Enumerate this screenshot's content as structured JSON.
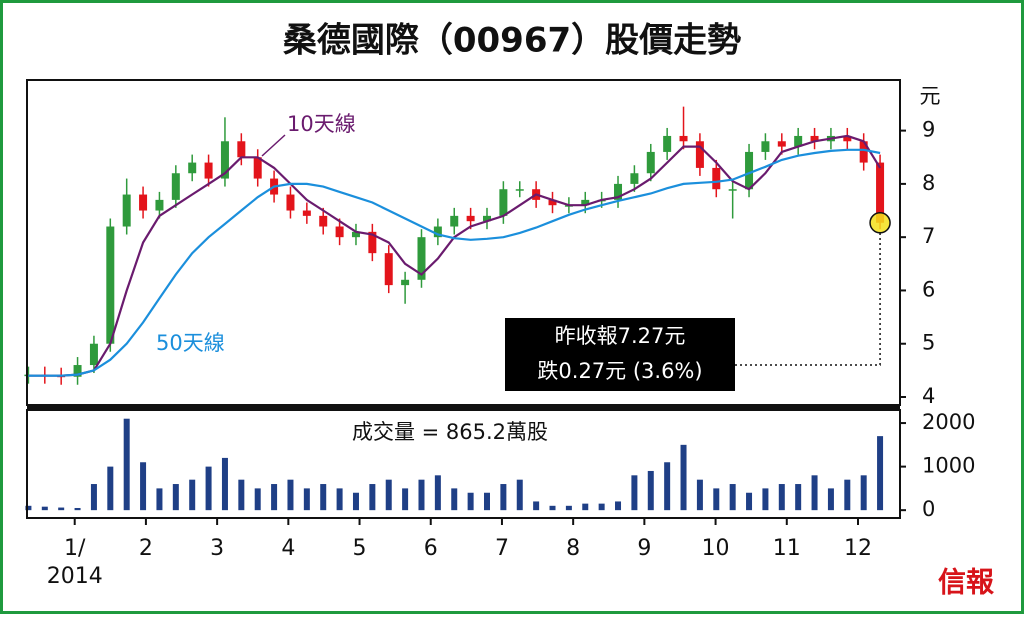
{
  "title": "桑德國際（00967）股價走勢",
  "source": "信報",
  "chart_data": [
    {
      "type": "candlestick",
      "y_unit": "元",
      "x": [
        0.35,
        0.58,
        0.81,
        1.04,
        1.27,
        1.5,
        1.73,
        1.96,
        2.19,
        2.42,
        2.65,
        2.88,
        3.11,
        3.34,
        3.57,
        3.8,
        4.03,
        4.26,
        4.49,
        4.72,
        4.95,
        5.18,
        5.41,
        5.64,
        5.87,
        6.1,
        6.33,
        6.56,
        6.79,
        7.02,
        7.25,
        7.48,
        7.71,
        7.94,
        8.17,
        8.4,
        8.63,
        8.86,
        9.09,
        9.32,
        9.55,
        9.78,
        10.01,
        10.24,
        10.47,
        10.7,
        10.93,
        11.16,
        11.39,
        11.62,
        11.85,
        12.08,
        12.31
      ],
      "open": [
        4.4,
        4.42,
        4.4,
        4.38,
        4.6,
        5.0,
        7.2,
        7.8,
        7.5,
        7.7,
        8.2,
        8.4,
        8.1,
        8.8,
        8.5,
        8.1,
        7.8,
        7.5,
        7.4,
        7.2,
        7.0,
        7.1,
        6.7,
        6.1,
        6.2,
        7.0,
        7.2,
        7.4,
        7.3,
        7.4,
        7.9,
        7.9,
        7.7,
        7.6,
        7.6,
        7.7,
        7.7,
        8.0,
        8.2,
        8.6,
        8.9,
        8.8,
        8.3,
        7.9,
        7.9,
        8.6,
        8.8,
        8.7,
        8.9,
        8.8,
        8.9,
        8.8,
        8.4
      ],
      "high": [
        4.57,
        4.57,
        4.55,
        4.75,
        5.15,
        7.35,
        8.1,
        7.95,
        7.85,
        8.35,
        8.55,
        8.55,
        9.25,
        8.95,
        8.65,
        8.25,
        7.95,
        7.65,
        7.55,
        7.35,
        7.25,
        7.25,
        6.85,
        6.35,
        7.15,
        7.35,
        7.55,
        7.55,
        7.55,
        8.05,
        8.05,
        8.05,
        7.85,
        7.75,
        7.85,
        7.85,
        8.15,
        8.35,
        8.75,
        9.05,
        9.45,
        8.95,
        8.45,
        8.05,
        8.75,
        8.95,
        8.95,
        9.05,
        9.05,
        9.05,
        9.05,
        8.95,
        8.55
      ],
      "low": [
        4.25,
        4.25,
        4.23,
        4.23,
        4.45,
        4.85,
        7.05,
        7.35,
        7.35,
        7.55,
        8.05,
        7.95,
        7.95,
        8.35,
        7.95,
        7.65,
        7.35,
        7.25,
        7.05,
        6.85,
        6.85,
        6.55,
        5.95,
        5.75,
        6.05,
        6.85,
        7.05,
        7.15,
        7.15,
        7.25,
        7.75,
        7.55,
        7.45,
        7.45,
        7.45,
        7.55,
        7.55,
        7.85,
        8.05,
        8.45,
        8.65,
        8.15,
        7.75,
        7.35,
        7.75,
        8.45,
        8.55,
        8.55,
        8.65,
        8.65,
        8.65,
        8.25,
        7.15
      ],
      "close": [
        4.42,
        4.4,
        4.38,
        4.6,
        5.0,
        7.2,
        7.8,
        7.5,
        7.7,
        8.2,
        8.4,
        8.1,
        8.8,
        8.5,
        8.1,
        7.8,
        7.5,
        7.4,
        7.2,
        7.0,
        7.1,
        6.7,
        6.1,
        6.2,
        7.0,
        7.2,
        7.4,
        7.3,
        7.4,
        7.9,
        7.9,
        7.7,
        7.6,
        7.6,
        7.7,
        7.7,
        8.0,
        8.2,
        8.6,
        8.9,
        8.8,
        8.3,
        7.9,
        7.9,
        8.6,
        8.8,
        8.7,
        8.9,
        8.8,
        8.9,
        8.8,
        8.4,
        7.27
      ],
      "up_color": "#2f9a3c",
      "down_color": "#e3141b",
      "series": [
        {
          "name": "10天線",
          "color": "#6a1b6e",
          "values": [
            4.4,
            4.4,
            4.4,
            4.42,
            4.5,
            5.0,
            6.0,
            6.9,
            7.4,
            7.6,
            7.8,
            8.0,
            8.2,
            8.5,
            8.5,
            8.3,
            8.0,
            7.7,
            7.5,
            7.3,
            7.1,
            7.05,
            6.9,
            6.5,
            6.3,
            6.6,
            7.0,
            7.2,
            7.3,
            7.4,
            7.6,
            7.8,
            7.7,
            7.6,
            7.6,
            7.7,
            7.75,
            7.9,
            8.1,
            8.4,
            8.7,
            8.7,
            8.4,
            8.05,
            7.9,
            8.2,
            8.6,
            8.7,
            8.8,
            8.85,
            8.9,
            8.8,
            8.3
          ]
        },
        {
          "name": "50天線",
          "color": "#1b8fdc",
          "values": [
            4.4,
            4.4,
            4.4,
            4.42,
            4.5,
            4.7,
            5.0,
            5.4,
            5.85,
            6.3,
            6.7,
            7.0,
            7.25,
            7.5,
            7.75,
            7.95,
            8.0,
            8.0,
            7.95,
            7.85,
            7.75,
            7.65,
            7.5,
            7.35,
            7.2,
            7.05,
            6.98,
            6.95,
            6.97,
            7.0,
            7.08,
            7.18,
            7.3,
            7.42,
            7.52,
            7.6,
            7.68,
            7.75,
            7.82,
            7.92,
            8.0,
            8.02,
            8.04,
            8.08,
            8.2,
            8.32,
            8.45,
            8.53,
            8.58,
            8.62,
            8.64,
            8.64,
            8.58
          ]
        }
      ],
      "highlight_color": "#f5e11a",
      "annotations": [
        "昨收報7.27元",
        "跌0.27元 (3.6%)"
      ],
      "xlim": [
        0.33,
        12.59
      ],
      "ylim": [
        3.85,
        9.95
      ],
      "yticks": [
        4,
        5,
        6,
        7,
        8,
        9
      ]
    },
    {
      "type": "bar",
      "title": "成交量 = 865.2萬股",
      "color": "#1f3f86",
      "x": [
        0.35,
        0.58,
        0.81,
        1.04,
        1.27,
        1.5,
        1.73,
        1.96,
        2.19,
        2.42,
        2.65,
        2.88,
        3.11,
        3.34,
        3.57,
        3.8,
        4.03,
        4.26,
        4.49,
        4.72,
        4.95,
        5.18,
        5.41,
        5.64,
        5.87,
        6.1,
        6.33,
        6.56,
        6.79,
        7.02,
        7.25,
        7.48,
        7.71,
        7.94,
        8.17,
        8.4,
        8.63,
        8.86,
        9.09,
        9.32,
        9.55,
        9.78,
        10.01,
        10.24,
        10.47,
        10.7,
        10.93,
        11.16,
        11.39,
        11.62,
        11.85,
        12.08,
        12.31
      ],
      "values": [
        100,
        80,
        60,
        50,
        600,
        1000,
        2100,
        1100,
        500,
        600,
        700,
        1000,
        1200,
        700,
        500,
        600,
        700,
        500,
        600,
        500,
        400,
        600,
        700,
        500,
        700,
        800,
        500,
        400,
        400,
        600,
        700,
        200,
        100,
        100,
        150,
        150,
        200,
        800,
        900,
        1100,
        1500,
        700,
        500,
        600,
        400,
        500,
        600,
        600,
        800,
        500,
        700,
        800,
        1700
      ],
      "xlim": [
        0.33,
        12.59
      ],
      "ylim": [
        -180,
        2300
      ],
      "yticks": [
        0,
        1000,
        2000
      ],
      "xticks": [
        {
          "value": 1,
          "label": "1/"
        },
        2,
        3,
        4,
        5,
        6,
        7,
        8,
        9,
        10,
        11,
        12
      ],
      "x_sublabel": "2014"
    }
  ]
}
